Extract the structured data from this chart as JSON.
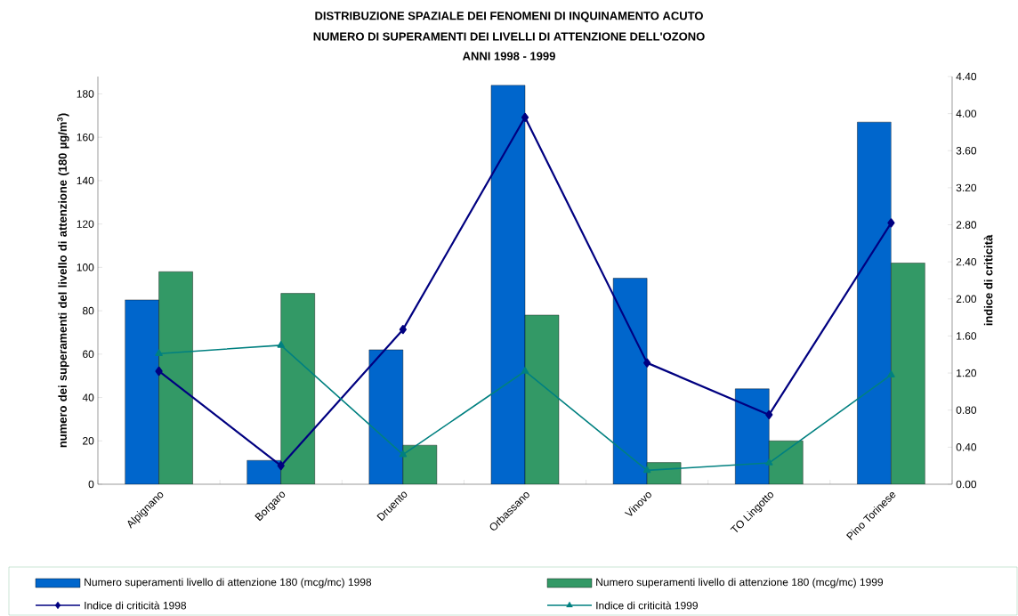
{
  "chart_data": {
    "type": "bar",
    "title": "DISTRIBUZIONE SPAZIALE DEI FENOMENI DI INQUINAMENTO ACUTO",
    "subtitle": "NUMERO DI SUPERAMENTI DEI LIVELLI DI ATTENZIONE DELL'OZONO",
    "annotations": [
      "ANNI 1998 - 1999"
    ],
    "ylabel": "numero dei superamenti del livello di attenzione (180 µg/m$^{3}$)",
    "y2label": "indice di criticità",
    "categories": [
      "Alpignano",
      "Borgaro",
      "Druento",
      "Orbassano",
      "Vinovo",
      "TO Lingotto",
      "Pino Torinese"
    ],
    "series": [
      {
        "name": "Numero superamenti livello di attenzione 180 (mcg/mc) 1998",
        "color": "#0066cc",
        "values": [
          85,
          11,
          62,
          184,
          95,
          44,
          167
        ]
      },
      {
        "name": "Numero superamenti livello di attenzione 180 (mcg/mc) 1999",
        "color": "#339966",
        "values": [
          98,
          88,
          18,
          78,
          10,
          20,
          102
        ]
      },
      {
        "name": "Indice di criticità 1998",
        "type": "line",
        "axis": "y2",
        "color": "#000080",
        "marker": "diamond",
        "values": [
          1.22,
          0.2,
          1.67,
          3.96,
          1.31,
          0.75,
          2.82
        ]
      },
      {
        "name": "Indice di criticità 1999",
        "type": "line",
        "axis": "y2",
        "color": "#008080",
        "marker": "triangle",
        "values": [
          1.41,
          1.5,
          0.32,
          1.22,
          0.15,
          0.23,
          1.18
        ]
      }
    ],
    "ylim": [
      0,
      188
    ],
    "yticks": [
      0,
      20,
      40,
      60,
      80,
      100,
      120,
      140,
      160,
      180
    ],
    "y2lim": [
      0,
      4.4
    ],
    "y2ticks": [
      {
        "value": 0,
        "label": "0.00"
      },
      {
        "value": 0.4,
        "label": "0.40"
      },
      {
        "value": 0.8,
        "label": "0.80"
      },
      {
        "value": 1.2,
        "label": "1.20"
      },
      {
        "value": 1.6,
        "label": "1.60"
      },
      {
        "value": 2.0,
        "label": "2.00"
      },
      {
        "value": 2.4,
        "label": "2.40"
      },
      {
        "value": 2.8,
        "label": "2.80"
      },
      {
        "value": 3.2,
        "label": "3.20"
      },
      {
        "value": 3.6,
        "label": "3.60"
      },
      {
        "value": 4.0,
        "label": "4.00"
      },
      {
        "value": 4.4,
        "label": "4.40"
      }
    ],
    "legend": "bottom",
    "grid": false
  }
}
